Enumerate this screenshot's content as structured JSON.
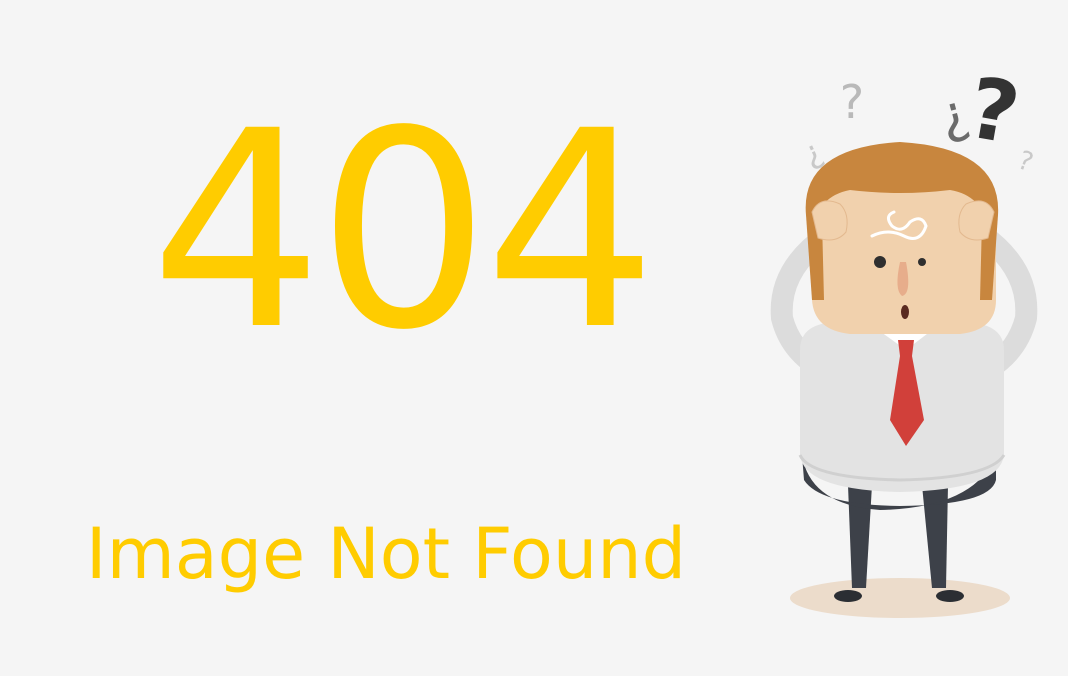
{
  "error": {
    "code": "404",
    "message": "Image Not Found"
  },
  "illustration": {
    "question_marks": [
      "?",
      "¿",
      "¿",
      "?",
      "?"
    ]
  },
  "colors": {
    "background": "#f5f5f5",
    "accent": "#ffcc00",
    "hair": "#c8863e",
    "skin": "#f1d1ad",
    "shirt": "#e3e3e3",
    "tie": "#d1403a",
    "pants": "#3d4149"
  }
}
